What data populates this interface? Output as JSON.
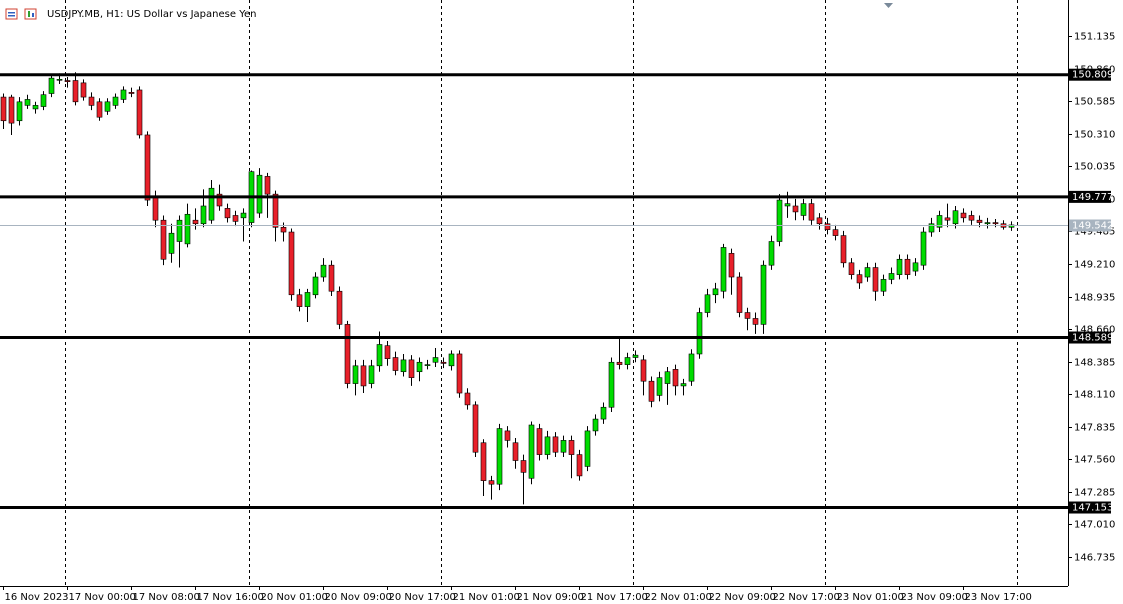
{
  "chart_data": {
    "type": "candlestick",
    "title": "USDJPY.MB, H1:  US Dollar vs Japanese Yen",
    "bull_color": "#00dc00",
    "bear_color": "#e8202a",
    "open": [
      150.62,
      150.62,
      150.42,
      150.55,
      150.52,
      150.54,
      150.65,
      150.77,
      150.76,
      150.76,
      150.74,
      150.62,
      150.58,
      150.5,
      150.55,
      150.6,
      150.66,
      150.68,
      150.3,
      149.77,
      149.58,
      149.3,
      149.4,
      149.38,
      149.58,
      149.55,
      149.58,
      149.8,
      149.68,
      149.62,
      149.6,
      149.56,
      149.64,
      149.95,
      149.8,
      149.52,
      149.48,
      148.95,
      148.85,
      148.95,
      149.1,
      149.2,
      148.98,
      148.7,
      148.2,
      148.35,
      148.2,
      148.35,
      148.52,
      148.42,
      148.3,
      148.4,
      148.3,
      148.36,
      148.38,
      148.38,
      148.35,
      148.45,
      148.12,
      148.02,
      147.7,
      147.38,
      147.35,
      147.8,
      147.7,
      147.55,
      147.4,
      147.82,
      147.6,
      147.75,
      147.62,
      147.72,
      147.6,
      147.5,
      147.8,
      147.9,
      148.0,
      148.38,
      148.36,
      148.42,
      148.4,
      148.22,
      148.1,
      148.2,
      148.32,
      148.18,
      148.22,
      148.45,
      148.8,
      148.95,
      148.98,
      149.3,
      149.1,
      148.8,
      148.75,
      148.7,
      149.2,
      149.4,
      149.7,
      149.7,
      149.62,
      149.72,
      149.6,
      149.55,
      149.5,
      149.45,
      149.22,
      149.12,
      149.1,
      149.18,
      148.98,
      149.08,
      149.12,
      149.25,
      149.15,
      149.2,
      149.48,
      149.52,
      149.6,
      149.55,
      149.64,
      149.62,
      149.58,
      149.55,
      149.56,
      149.55,
      149.52
    ],
    "high": [
      150.65,
      150.64,
      150.62,
      150.64,
      150.58,
      150.67,
      150.81,
      150.82,
      150.79,
      150.83,
      150.77,
      150.66,
      150.61,
      150.61,
      150.65,
      150.71,
      150.7,
      150.71,
      150.33,
      149.83,
      149.62,
      149.55,
      149.62,
      149.72,
      149.68,
      149.84,
      149.92,
      149.88,
      149.72,
      149.66,
      149.68,
      150.0,
      150.02,
      149.98,
      149.83,
      149.56,
      149.51,
      149.0,
      149.0,
      149.14,
      149.26,
      149.24,
      149.02,
      148.73,
      148.4,
      148.4,
      148.4,
      148.64,
      148.56,
      148.47,
      148.45,
      148.44,
      148.42,
      148.4,
      148.5,
      148.42,
      148.48,
      148.48,
      148.16,
      148.05,
      147.73,
      147.42,
      147.86,
      147.84,
      147.74,
      147.6,
      147.88,
      147.86,
      147.8,
      147.79,
      147.76,
      147.76,
      147.64,
      147.84,
      147.94,
      148.04,
      148.42,
      148.6,
      148.46,
      148.48,
      148.44,
      148.26,
      148.3,
      148.34,
      148.36,
      148.24,
      148.49,
      148.84,
      149.0,
      149.05,
      149.38,
      149.34,
      149.14,
      148.84,
      148.8,
      149.24,
      149.45,
      149.8,
      149.82,
      149.76,
      149.76,
      149.76,
      149.64,
      149.6,
      149.54,
      149.49,
      149.26,
      149.16,
      149.22,
      149.22,
      149.12,
      149.18,
      149.29,
      149.29,
      149.26,
      149.52,
      149.6,
      149.66,
      149.72,
      149.7,
      149.68,
      149.66,
      149.62,
      149.6,
      149.59,
      149.58,
      149.57
    ],
    "low": [
      150.35,
      150.3,
      150.38,
      150.52,
      150.48,
      150.51,
      150.62,
      150.73,
      150.7,
      150.55,
      150.59,
      150.51,
      150.42,
      150.47,
      150.52,
      150.57,
      150.62,
      150.27,
      149.7,
      149.52,
      149.2,
      149.22,
      149.18,
      149.35,
      149.5,
      149.52,
      149.55,
      149.66,
      149.56,
      149.53,
      149.4,
      149.52,
      149.6,
      149.6,
      149.4,
      149.4,
      148.9,
      148.81,
      148.72,
      148.92,
      149.06,
      148.94,
      148.66,
      148.16,
      148.1,
      148.12,
      148.16,
      148.3,
      148.35,
      148.27,
      148.26,
      148.18,
      148.22,
      148.32,
      148.34,
      148.33,
      148.31,
      148.08,
      147.98,
      147.58,
      147.25,
      147.22,
      147.3,
      147.66,
      147.48,
      147.18,
      147.35,
      147.55,
      147.56,
      147.58,
      147.58,
      147.4,
      147.38,
      147.46,
      147.76,
      147.86,
      147.96,
      148.32,
      148.32,
      148.38,
      148.1,
      148.0,
      148.05,
      148.02,
      148.1,
      148.1,
      148.18,
      148.41,
      148.76,
      148.88,
      148.92,
      148.95,
      148.76,
      148.65,
      148.62,
      148.62,
      149.16,
      149.36,
      149.6,
      149.58,
      149.58,
      149.54,
      149.5,
      149.46,
      149.41,
      149.18,
      149.08,
      149.0,
      149.06,
      148.9,
      148.94,
      149.04,
      149.08,
      149.08,
      149.11,
      149.16,
      149.44,
      149.48,
      149.52,
      149.51,
      149.56,
      149.54,
      149.52,
      149.51,
      149.52,
      149.5,
      149.49
    ],
    "close": [
      150.42,
      150.4,
      150.58,
      150.6,
      150.55,
      150.64,
      150.78,
      150.77,
      150.75,
      150.58,
      150.62,
      150.55,
      150.45,
      150.58,
      150.62,
      150.68,
      150.65,
      150.3,
      149.75,
      149.58,
      149.25,
      149.47,
      149.58,
      149.63,
      149.55,
      149.7,
      149.85,
      149.7,
      149.6,
      149.57,
      149.64,
      149.99,
      149.96,
      149.8,
      149.52,
      149.48,
      148.95,
      148.85,
      148.97,
      149.1,
      149.2,
      148.98,
      148.7,
      148.2,
      148.35,
      148.18,
      148.35,
      148.53,
      148.41,
      148.31,
      148.4,
      148.25,
      148.38,
      148.36,
      148.42,
      148.37,
      148.45,
      148.12,
      148.02,
      147.62,
      147.38,
      147.35,
      147.82,
      147.72,
      147.55,
      147.45,
      147.85,
      147.6,
      147.75,
      147.62,
      147.72,
      147.6,
      147.42,
      147.8,
      147.9,
      148.0,
      148.38,
      148.36,
      148.42,
      148.44,
      148.22,
      148.05,
      148.25,
      148.3,
      148.18,
      148.2,
      148.45,
      148.8,
      148.95,
      149.0,
      149.35,
      149.1,
      148.8,
      148.75,
      148.7,
      149.2,
      149.4,
      149.75,
      149.72,
      149.65,
      149.72,
      149.58,
      149.55,
      149.5,
      149.45,
      149.22,
      149.12,
      149.05,
      149.18,
      148.98,
      149.08,
      149.13,
      149.25,
      149.12,
      149.22,
      149.48,
      149.55,
      149.62,
      149.58,
      149.66,
      149.6,
      149.58,
      149.56,
      149.56,
      149.55,
      149.52,
      149.54
    ],
    "xlim": [
      -0.4,
      133.1
    ],
    "xticks": [
      {
        "value": 0,
        "label": "16 Nov 2023"
      },
      {
        "value": 8,
        "label": "17 Nov 00:00"
      },
      {
        "value": 16,
        "label": "17 Nov 08:00"
      },
      {
        "value": 24,
        "label": "17 Nov 16:00"
      },
      {
        "value": 32,
        "label": "20 Nov 01:00"
      },
      {
        "value": 40,
        "label": "20 Nov 09:00"
      },
      {
        "value": 48,
        "label": "20 Nov 17:00"
      },
      {
        "value": 56,
        "label": "21 Nov 01:00"
      },
      {
        "value": 64,
        "label": "21 Nov 09:00"
      },
      {
        "value": 72,
        "label": "21 Nov 17:00"
      },
      {
        "value": 80,
        "label": "22 Nov 01:00"
      },
      {
        "value": 88,
        "label": "22 Nov 09:00"
      },
      {
        "value": 96,
        "label": "22 Nov 17:00"
      },
      {
        "value": 104,
        "label": "23 Nov 01:00"
      },
      {
        "value": 112,
        "label": "23 Nov 09:00"
      },
      {
        "value": 120,
        "label": "23 Nov 17:00"
      }
    ],
    "period_separators": [
      7.75,
      30.75,
      54.75,
      78.75,
      102.75,
      126.75
    ],
    "ylim": [
      146.49,
      151.44
    ],
    "yticks": [
      151.135,
      {
        "value": 150.86,
        "label": "150.860"
      },
      150.585,
      {
        "value": 150.31,
        "label": "150.310"
      },
      150.035,
      {
        "value": 149.76,
        "label": "149.760"
      },
      149.485,
      {
        "value": 149.21,
        "label": "149.210"
      },
      148.935,
      {
        "value": 148.66,
        "label": "148.660"
      },
      148.385,
      {
        "value": 148.11,
        "label": "148.110"
      },
      147.835,
      {
        "value": 147.56,
        "label": "147.560"
      },
      147.285,
      {
        "value": 147.01,
        "label": "147.010"
      },
      146.735
    ],
    "levels": [
      150.809,
      149.777,
      148.589,
      147.153
    ],
    "current_price": 149.542
  }
}
